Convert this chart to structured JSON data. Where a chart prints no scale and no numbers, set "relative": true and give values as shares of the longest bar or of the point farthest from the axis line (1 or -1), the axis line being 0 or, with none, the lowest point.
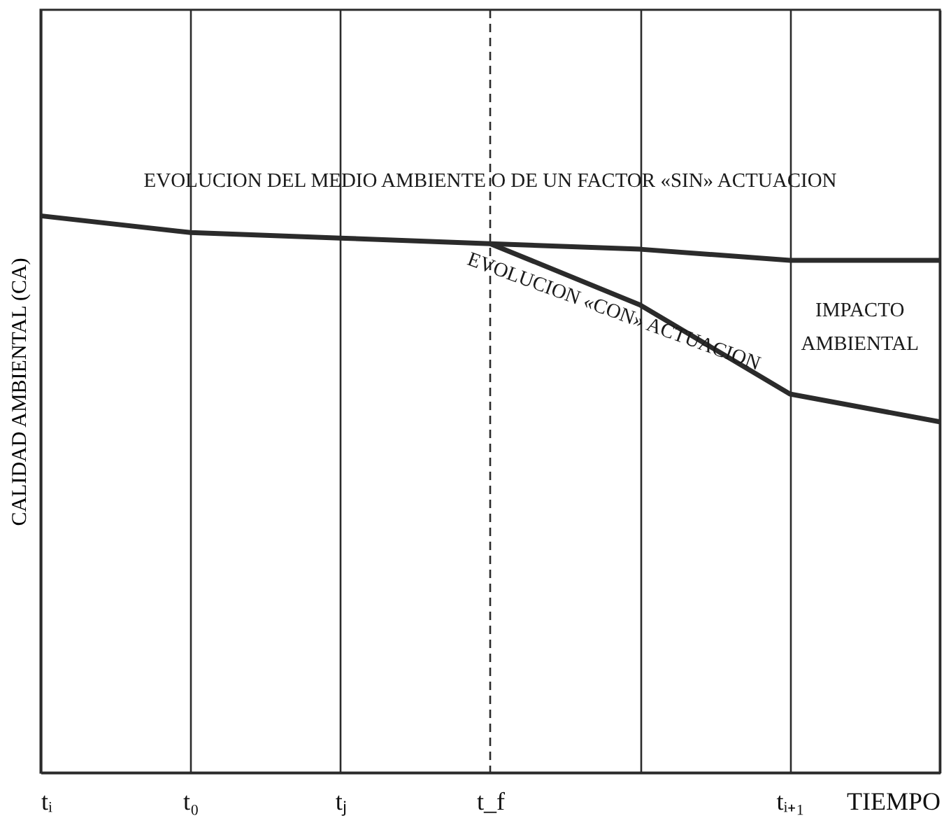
{
  "chart_data": {
    "type": "line",
    "relative": true,
    "ylabel": "CALIDAD AMBIENTAL (CA)",
    "tick_labels": "x",
    "grid": "x",
    "marker": "none",
    "line_style": "solid",
    "categories": [
      "tᵢ",
      "t₀",
      "tⱼ",
      "t_f",
      null,
      "tᵢ₊₁",
      "TIEMPO"
    ],
    "ref_lines": [
      {
        "axis": "x",
        "value": "t_f",
        "color": "#2b2b2b",
        "line_style": "dashed"
      }
    ],
    "series": [
      {
        "color": "#2b2b2b",
        "values": [
          1,
          0.97,
          0.96,
          0.95,
          0.94,
          0.92,
          0.92
        ]
      },
      {
        "color": "#2b2b2b",
        "values": [
          null,
          null,
          null,
          0.95,
          0.84,
          0.68,
          0.63
        ]
      }
    ],
    "annotations": [
      "EVOLUCION DEL MEDIO AMBIENTE O DE UN FACTOR «SIN» ACTUACION",
      "EVOLUCION «CON» ACTUACION",
      "IMPACTO AMBIENTAL"
    ]
  }
}
